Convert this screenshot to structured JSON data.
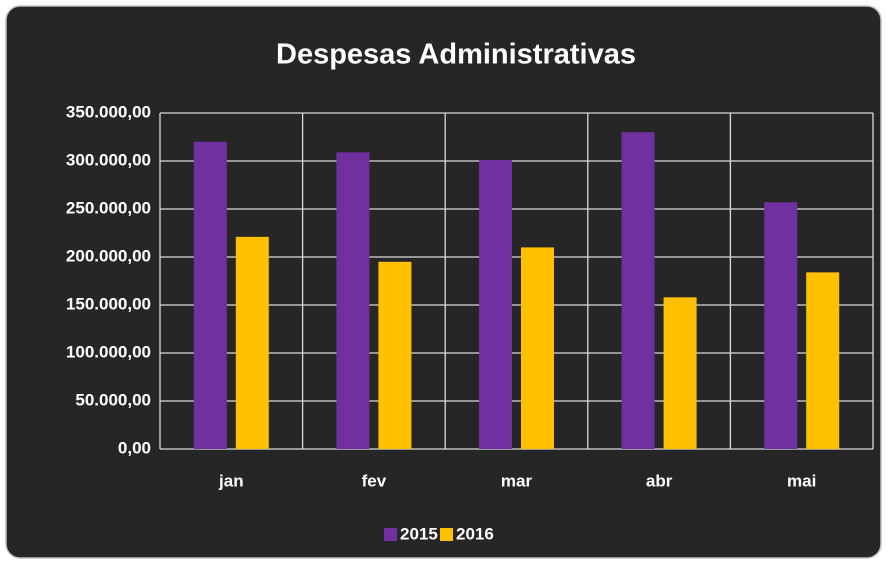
{
  "chart_data": {
    "type": "bar",
    "title": "Despesas Administrativas",
    "categories": [
      "jan",
      "fev",
      "mar",
      "abr",
      "mai"
    ],
    "series": [
      {
        "name": "2015",
        "color": "#7030a0",
        "values": [
          320000,
          309000,
          301000,
          330000,
          257000
        ]
      },
      {
        "name": "2016",
        "color": "#ffc000",
        "values": [
          221000,
          195000,
          210000,
          158000,
          184000
        ]
      }
    ],
    "ylim": [
      0,
      350000
    ],
    "yticks": [
      {
        "value": 0,
        "label": "0,00"
      },
      {
        "value": 50000,
        "label": "50.000,00"
      },
      {
        "value": 100000,
        "label": "100.000,00"
      },
      {
        "value": 150000,
        "label": "150.000,00"
      },
      {
        "value": 200000,
        "label": "200.000,00"
      },
      {
        "value": 250000,
        "label": "250.000,00"
      },
      {
        "value": 300000,
        "label": "300.000,00"
      },
      {
        "value": 350000,
        "label": "350.000,00"
      }
    ],
    "grid": true,
    "legend": "bottom"
  }
}
